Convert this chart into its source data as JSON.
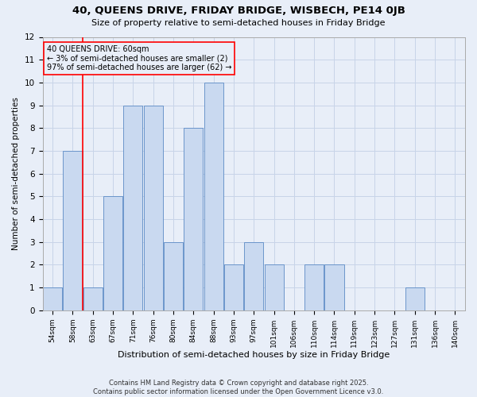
{
  "title1": "40, QUEENS DRIVE, FRIDAY BRIDGE, WISBECH, PE14 0JB",
  "title2": "Size of property relative to semi-detached houses in Friday Bridge",
  "xlabel": "Distribution of semi-detached houses by size in Friday Bridge",
  "ylabel": "Number of semi-detached properties",
  "footnote1": "Contains HM Land Registry data © Crown copyright and database right 2025.",
  "footnote2": "Contains public sector information licensed under the Open Government Licence v3.0.",
  "annotation_title": "40 QUEENS DRIVE: 60sqm",
  "annotation_line2": "← 3% of semi-detached houses are smaller (2)",
  "annotation_line3": "97% of semi-detached houses are larger (62) →",
  "bins": [
    "54sqm",
    "58sqm",
    "63sqm",
    "67sqm",
    "71sqm",
    "76sqm",
    "80sqm",
    "84sqm",
    "88sqm",
    "93sqm",
    "97sqm",
    "101sqm",
    "106sqm",
    "110sqm",
    "114sqm",
    "119sqm",
    "123sqm",
    "127sqm",
    "131sqm",
    "136sqm",
    "140sqm"
  ],
  "values": [
    1,
    7,
    1,
    5,
    9,
    9,
    3,
    8,
    10,
    2,
    3,
    2,
    0,
    2,
    2,
    0,
    0,
    0,
    1,
    0,
    0
  ],
  "bar_color": "#c9d9f0",
  "bar_edge_color": "#5b8ac5",
  "red_line_x": 1.5,
  "ylim": [
    0,
    12
  ],
  "yticks": [
    0,
    1,
    2,
    3,
    4,
    5,
    6,
    7,
    8,
    9,
    10,
    11,
    12
  ],
  "grid_color": "#c8d4e8",
  "background_color": "#e8eef8"
}
